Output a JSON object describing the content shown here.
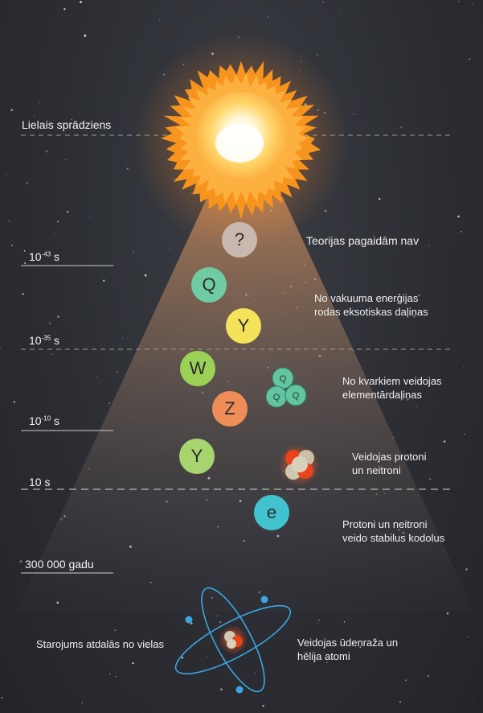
{
  "timeline": [
    {
      "label": "Lielais sprādziens"
    },
    {
      "base": "10",
      "exp": "-43",
      "unit": " s"
    },
    {
      "base": "10",
      "exp": "-35",
      "unit": " s"
    },
    {
      "base": "10",
      "exp": "-10",
      "unit": " s"
    },
    {
      "label": "10 s"
    },
    {
      "label": "300 000 gadu"
    }
  ],
  "particles": [
    {
      "symbol": "?",
      "color": "#c9b8ae"
    },
    {
      "symbol": "Q",
      "color": "#6fcba1"
    },
    {
      "symbol": "Y",
      "color": "#f4e25a"
    },
    {
      "symbol": "W",
      "color": "#9bd157"
    },
    {
      "symbol": "Z",
      "color": "#ef8d58"
    },
    {
      "symbol": "Y",
      "color": "#a7d46e"
    },
    {
      "symbol": "e",
      "color": "#41c3cf"
    }
  ],
  "quark_cluster": {
    "symbols": [
      "Q",
      "Q",
      "Q"
    ],
    "color": "#63c4a0"
  },
  "descriptions": {
    "d1": "Teorijas pagaidām nav",
    "d2a": "No vakuuma enerģijas",
    "d2b": "rodas eksotiskas daļiņas",
    "d3a": "No kvarkiem veidojas",
    "d3b": "elementārdaļiņas",
    "d4a": "Veidojas protoni",
    "d4b": "un neitroni",
    "d5a": "Protoni un neitroni",
    "d5b": "veido stabilus kodolus",
    "d6": "Starojums atdalās no vielas",
    "d7a": "Veidojas ūdeņraža un",
    "d7b": "hēlija atomi"
  },
  "colors": {
    "background": "#2c2e34",
    "sun_outer": "#f7941d",
    "sun_mid": "#fbb040",
    "sun_inner": "#fff3c4",
    "atom_orbit": "#3aa6e0"
  }
}
